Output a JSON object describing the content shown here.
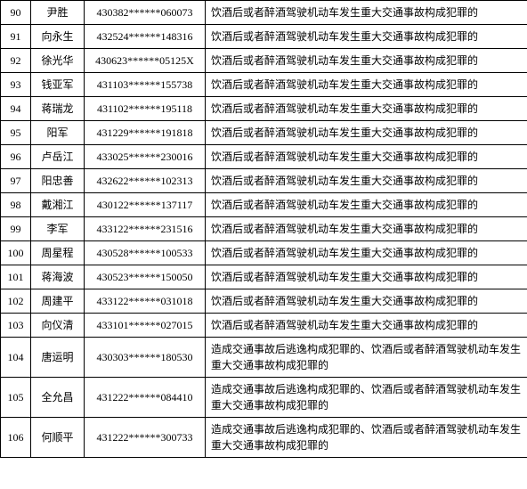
{
  "table": {
    "rows": [
      {
        "index": "90",
        "name": "尹胜",
        "id": "430382******060073",
        "offense": "饮酒后或者醉酒驾驶机动车发生重大交通事故构成犯罪的"
      },
      {
        "index": "91",
        "name": "向永生",
        "id": "432524******148316",
        "offense": "饮酒后或者醉酒驾驶机动车发生重大交通事故构成犯罪的"
      },
      {
        "index": "92",
        "name": "徐光华",
        "id": "430623******05125X",
        "offense": "饮酒后或者醉酒驾驶机动车发生重大交通事故构成犯罪的"
      },
      {
        "index": "93",
        "name": "钱亚军",
        "id": "431103******155738",
        "offense": "饮酒后或者醉酒驾驶机动车发生重大交通事故构成犯罪的"
      },
      {
        "index": "94",
        "name": "蒋瑞龙",
        "id": "431102******195118",
        "offense": "饮酒后或者醉酒驾驶机动车发生重大交通事故构成犯罪的"
      },
      {
        "index": "95",
        "name": "阳军",
        "id": "431229******191818",
        "offense": "饮酒后或者醉酒驾驶机动车发生重大交通事故构成犯罪的"
      },
      {
        "index": "96",
        "name": "卢岳江",
        "id": "433025******230016",
        "offense": "饮酒后或者醉酒驾驶机动车发生重大交通事故构成犯罪的"
      },
      {
        "index": "97",
        "name": "阳忠善",
        "id": "432622******102313",
        "offense": "饮酒后或者醉酒驾驶机动车发生重大交通事故构成犯罪的"
      },
      {
        "index": "98",
        "name": "戴湘江",
        "id": "430122******137117",
        "offense": "饮酒后或者醉酒驾驶机动车发生重大交通事故构成犯罪的"
      },
      {
        "index": "99",
        "name": "李军",
        "id": "433122******231516",
        "offense": "饮酒后或者醉酒驾驶机动车发生重大交通事故构成犯罪的"
      },
      {
        "index": "100",
        "name": "周星程",
        "id": "430528******100533",
        "offense": "饮酒后或者醉酒驾驶机动车发生重大交通事故构成犯罪的"
      },
      {
        "index": "101",
        "name": "蒋海波",
        "id": "430523******150050",
        "offense": "饮酒后或者醉酒驾驶机动车发生重大交通事故构成犯罪的"
      },
      {
        "index": "102",
        "name": "周建平",
        "id": "433122******031018",
        "offense": "饮酒后或者醉酒驾驶机动车发生重大交通事故构成犯罪的"
      },
      {
        "index": "103",
        "name": "向仪清",
        "id": "433101******027015",
        "offense": "饮酒后或者醉酒驾驶机动车发生重大交通事故构成犯罪的"
      },
      {
        "index": "104",
        "name": "唐运明",
        "id": "430303******180530",
        "offense": "造成交通事故后逃逸构成犯罪的、饮酒后或者醉酒驾驶机动车发生重大交通事故构成犯罪的"
      },
      {
        "index": "105",
        "name": "全允昌",
        "id": "431222******084410",
        "offense": "造成交通事故后逃逸构成犯罪的、饮酒后或者醉酒驾驶机动车发生重大交通事故构成犯罪的"
      },
      {
        "index": "106",
        "name": "何顺平",
        "id": "431222******300733",
        "offense": "造成交通事故后逃逸构成犯罪的、饮酒后或者醉酒驾驶机动车发生重大交通事故构成犯罪的"
      }
    ]
  }
}
